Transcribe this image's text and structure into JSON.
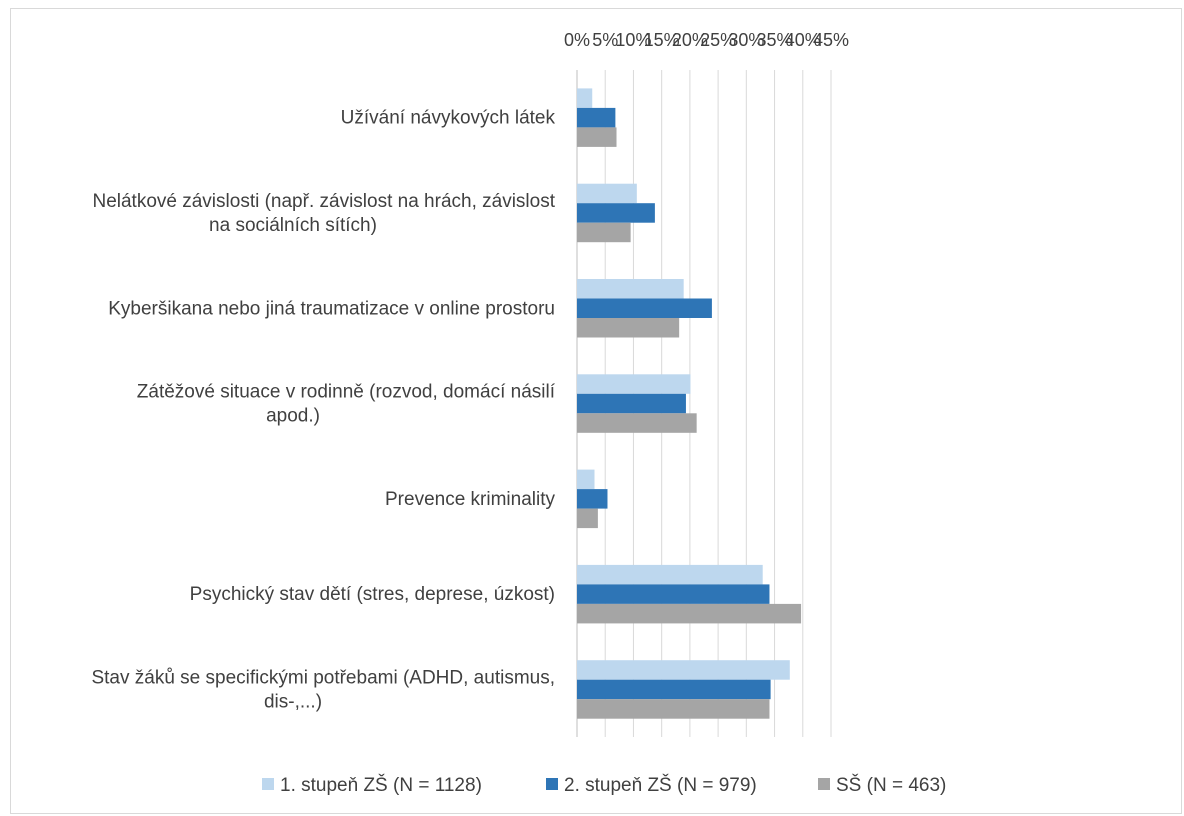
{
  "chart_data": {
    "type": "bar",
    "orientation": "horizontal",
    "categories": [
      [
        "Užívání návykových látek"
      ],
      [
        "Nelátkové závislosti (např. závislost na hrách, závislost",
        "na sociálních sítích)"
      ],
      [
        "Kyberšikana nebo jiná traumatizace v online prostoru"
      ],
      [
        "Zátěžové situace v rodinně (rozvod, domácí násilí",
        "apod.)"
      ],
      [
        "Prevence kriminality"
      ],
      [
        "Psychický stav dětí (stres, deprese, úzkost)"
      ],
      [
        "Stav žáků se specifickými potřebami (ADHD, autismus,",
        "dis-,...)"
      ]
    ],
    "series": [
      {
        "name": "1. stupeň ZŠ (N = 1128)",
        "color": "#bdd7ee",
        "values": [
          2.7,
          10.6,
          18.9,
          20.1,
          3.1,
          32.9,
          37.7
        ]
      },
      {
        "name": "2. stupeň ZŠ (N = 979)",
        "color": "#2e75b6",
        "values": [
          6.8,
          13.8,
          23.9,
          19.3,
          5.4,
          34.1,
          34.3
        ]
      },
      {
        "name": "SŠ (N = 463)",
        "color": "#a5a5a5",
        "values": [
          7.0,
          9.5,
          18.1,
          21.2,
          3.7,
          39.7,
          34.1
        ]
      }
    ],
    "xticks": [
      "0%",
      "5%",
      "10%",
      "15%",
      "20%",
      "25%",
      "30%",
      "35%",
      "40%",
      "45%"
    ],
    "xlim": [
      0,
      45
    ],
    "xaxis_position": "top",
    "grid": true,
    "legend_position": "bottom"
  }
}
